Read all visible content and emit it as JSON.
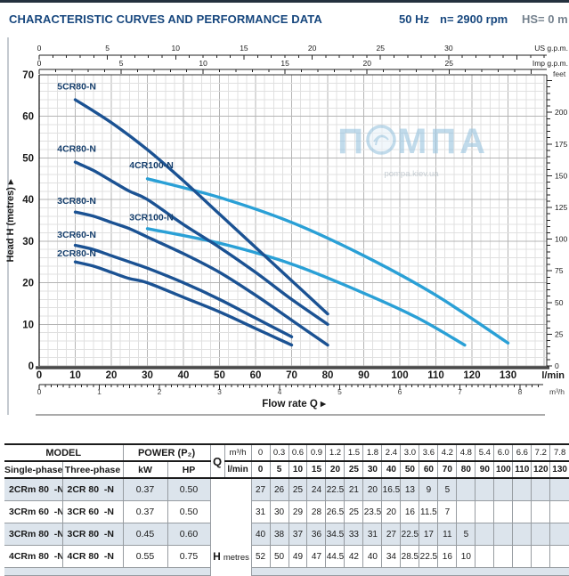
{
  "header": {
    "title": "CHARACTERISTIC CURVES AND PERFORMANCE DATA",
    "frequency": "50 Hz",
    "speed": "n= 2900 rpm",
    "suction": "HS= 0 m"
  },
  "watermark": {
    "part1": "П",
    "part2": "МПА",
    "subtext": "pompa.kiev.ua",
    "color": "#9cc6e0"
  },
  "chart_data": {
    "type": "line",
    "title": "",
    "xlabel": "Flow rate Q  ▸",
    "ylabel": "Head H  (metres)  ▸",
    "xlim": [
      0,
      140
    ],
    "ylim": [
      0,
      70
    ],
    "grid": "on",
    "colors": {
      "dark": "#1b5293",
      "light": "#2aa0d6"
    },
    "axes": {
      "x_bottom": {
        "label": "l/min",
        "ticks": [
          0,
          10,
          20,
          30,
          40,
          50,
          60,
          70,
          80,
          90,
          100,
          110,
          120,
          130
        ]
      },
      "x_bottom2": {
        "label": "m³/h",
        "ticks": [
          0,
          1,
          2,
          3,
          4,
          5,
          6,
          7,
          8
        ]
      },
      "x_top": {
        "label": "US g.p.m.",
        "ticks": [
          0,
          5,
          10,
          15,
          20,
          25,
          30
        ]
      },
      "x_top2": {
        "label": "Imp g.p.m.",
        "ticks": [
          0,
          5,
          10,
          15,
          20,
          25
        ]
      },
      "y_left": {
        "label": "Head H (metres)",
        "ticks": [
          0,
          10,
          20,
          30,
          40,
          50,
          60,
          70
        ]
      },
      "y_right": {
        "label": "feet",
        "ticks": [
          0,
          25,
          50,
          75,
          100,
          125,
          150,
          175,
          200
        ]
      }
    },
    "series": [
      {
        "name": "5CR80-N",
        "color": "dark",
        "label_at": [
          5,
          66.5
        ],
        "points": [
          [
            10,
            64
          ],
          [
            20,
            58.5
          ],
          [
            30,
            52
          ],
          [
            40,
            44.5
          ],
          [
            50,
            36.5
          ],
          [
            60,
            28.5
          ],
          [
            70,
            20.5
          ],
          [
            80,
            12.5
          ]
        ]
      },
      {
        "name": "4CR80-N",
        "color": "dark",
        "label_at": [
          5,
          51.5
        ],
        "points": [
          [
            10,
            49
          ],
          [
            15,
            47
          ],
          [
            20,
            44.5
          ],
          [
            25,
            42
          ],
          [
            30,
            40
          ],
          [
            40,
            34
          ],
          [
            50,
            28.5
          ],
          [
            60,
            22.5
          ],
          [
            70,
            16
          ],
          [
            80,
            10
          ]
        ]
      },
      {
        "name": "4CR100-N",
        "color": "light",
        "label_at": [
          25,
          47.5
        ],
        "points": [
          [
            30,
            45
          ],
          [
            50,
            40.5
          ],
          [
            70,
            34.5
          ],
          [
            90,
            26.5
          ],
          [
            110,
            17
          ],
          [
            130,
            5.5
          ]
        ]
      },
      {
        "name": "3CR80-N",
        "color": "dark",
        "label_at": [
          5,
          39
        ],
        "points": [
          [
            10,
            37
          ],
          [
            15,
            36
          ],
          [
            20,
            34.5
          ],
          [
            25,
            33
          ],
          [
            30,
            31
          ],
          [
            40,
            27
          ],
          [
            50,
            22.5
          ],
          [
            60,
            17
          ],
          [
            70,
            11
          ],
          [
            80,
            5
          ]
        ]
      },
      {
        "name": "3CR100-N",
        "color": "light",
        "label_at": [
          25,
          35
        ],
        "points": [
          [
            30,
            33
          ],
          [
            50,
            29.5
          ],
          [
            70,
            24.5
          ],
          [
            90,
            17.5
          ],
          [
            105,
            11.5
          ],
          [
            118,
            5
          ]
        ]
      },
      {
        "name": "3CR60-N",
        "color": "dark",
        "label_at": [
          5,
          30.8
        ],
        "points": [
          [
            10,
            29
          ],
          [
            15,
            28
          ],
          [
            20,
            26.5
          ],
          [
            25,
            25
          ],
          [
            30,
            23.5
          ],
          [
            40,
            20
          ],
          [
            50,
            16
          ],
          [
            60,
            11.5
          ],
          [
            70,
            7
          ]
        ]
      },
      {
        "name": "2CR80-N",
        "color": "dark",
        "label_at": [
          5,
          26.3
        ],
        "points": [
          [
            10,
            25
          ],
          [
            15,
            24
          ],
          [
            20,
            22.5
          ],
          [
            25,
            21
          ],
          [
            30,
            20
          ],
          [
            40,
            16.5
          ],
          [
            50,
            13
          ],
          [
            60,
            9
          ],
          [
            70,
            5
          ]
        ]
      }
    ]
  },
  "table": {
    "headers": {
      "model": "MODEL",
      "single": "Single-phase",
      "three": "Three-phase",
      "power": "POWER (P₂)",
      "kw": "kW",
      "hp": "HP",
      "q": "Q",
      "m3h": "m³/h",
      "lmin": "l/min",
      "h": "H",
      "h_unit": "metres"
    },
    "q_m3h": [
      "0",
      "0.3",
      "0.6",
      "0.9",
      "1.2",
      "1.5",
      "1.8",
      "2.4",
      "3.0",
      "3.6",
      "4.2",
      "4.8",
      "5.4",
      "6.0",
      "6.6",
      "7.2",
      "7.8"
    ],
    "q_lmin": [
      "0",
      "5",
      "10",
      "15",
      "20",
      "25",
      "30",
      "40",
      "50",
      "60",
      "70",
      "80",
      "90",
      "100",
      "110",
      "120",
      "130"
    ],
    "rows": [
      {
        "single": "2CRm 80  -N",
        "three": "2CR 80  -N",
        "kw": "0.37",
        "hp": "0.50",
        "h": [
          "27",
          "26",
          "25",
          "24",
          "22.5",
          "21",
          "20",
          "16.5",
          "13",
          "9",
          "5",
          "",
          "",
          "",
          "",
          "",
          ""
        ]
      },
      {
        "single": "3CRm 60  -N",
        "three": "3CR 60  -N",
        "kw": "0.37",
        "hp": "0.50",
        "h": [
          "31",
          "30",
          "29",
          "28",
          "26.5",
          "25",
          "23.5",
          "20",
          "16",
          "11.5",
          "7",
          "",
          "",
          "",
          "",
          "",
          ""
        ]
      },
      {
        "single": "3CRm 80  -N",
        "three": "3CR 80  -N",
        "kw": "0.45",
        "hp": "0.60",
        "h": [
          "40",
          "38",
          "37",
          "36",
          "34.5",
          "33",
          "31",
          "27",
          "22.5",
          "17",
          "11",
          "5",
          "",
          "",
          "",
          "",
          ""
        ]
      },
      {
        "single": "4CRm 80  -N",
        "three": "4CR 80  -N",
        "kw": "0.55",
        "hp": "0.75",
        "h": [
          "52",
          "50",
          "49",
          "47",
          "44.5",
          "42",
          "40",
          "34",
          "28.5",
          "22.5",
          "16",
          "10",
          "",
          "",
          "",
          "",
          ""
        ]
      }
    ]
  }
}
